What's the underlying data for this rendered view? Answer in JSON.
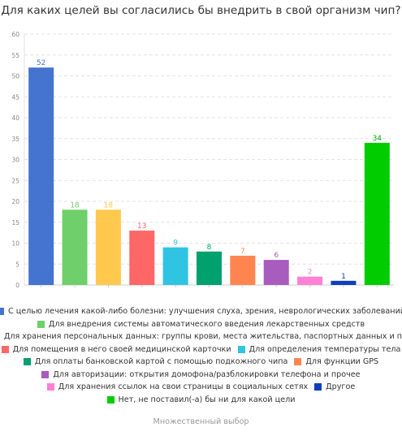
{
  "chart_data": {
    "type": "bar",
    "title": "Для каких целей вы согласились бы внедрить в свой организм чип?",
    "ylim": [
      0,
      60
    ],
    "yticks": [
      0,
      5,
      10,
      15,
      20,
      25,
      30,
      35,
      40,
      45,
      50,
      55,
      60
    ],
    "grid": true,
    "legend_position": "bottom",
    "note": "Множественный выбор",
    "series": [
      {
        "name": "С целью лечения какой-либо болезни: улучшения слуха, зрения, неврологических заболеваний",
        "value": 52,
        "color": "#4473d0"
      },
      {
        "name": "Для внедрения системы автоматического введения лекарственных средств",
        "value": 18,
        "color": "#6fcf6b"
      },
      {
        "name": "Для хранения персональных данных: группы крови, места жительства, паспортных данных и пр.",
        "value": 18,
        "color": "#ffc94d"
      },
      {
        "name": "Для помещения в него своей медицинской карточки",
        "value": 13,
        "color": "#ff6666"
      },
      {
        "name": "Для определения температуры тела",
        "value": 9,
        "color": "#2ec4e2"
      },
      {
        "name": "Для оплаты банковской картой с помощью подкожного чипа",
        "value": 8,
        "color": "#00a16c"
      },
      {
        "name": "Для функции GPS",
        "value": 7,
        "color": "#ff8550"
      },
      {
        "name": "Для авторизации: открытия домофона/разблокировки телефона и прочее",
        "value": 6,
        "color": "#a85cbd"
      },
      {
        "name": "Для хранения ссылок на свои страницы в социальных сетях",
        "value": 2,
        "color": "#ff80d5"
      },
      {
        "name": "Другое",
        "value": 1,
        "color": "#0f3fb8"
      },
      {
        "name": "Нет, не поставил(-а) бы ни для какой цели",
        "value": 34,
        "color": "#00cc00"
      }
    ],
    "label_colors": [
      "#4473d0",
      "#6fcf6b",
      "#ffc94d",
      "#ff6666",
      "#2ec4e2",
      "#00a16c",
      "#ff8550",
      "#a85cbd",
      "#ff80d5",
      "#0f3fb8",
      "#00aa00"
    ]
  }
}
